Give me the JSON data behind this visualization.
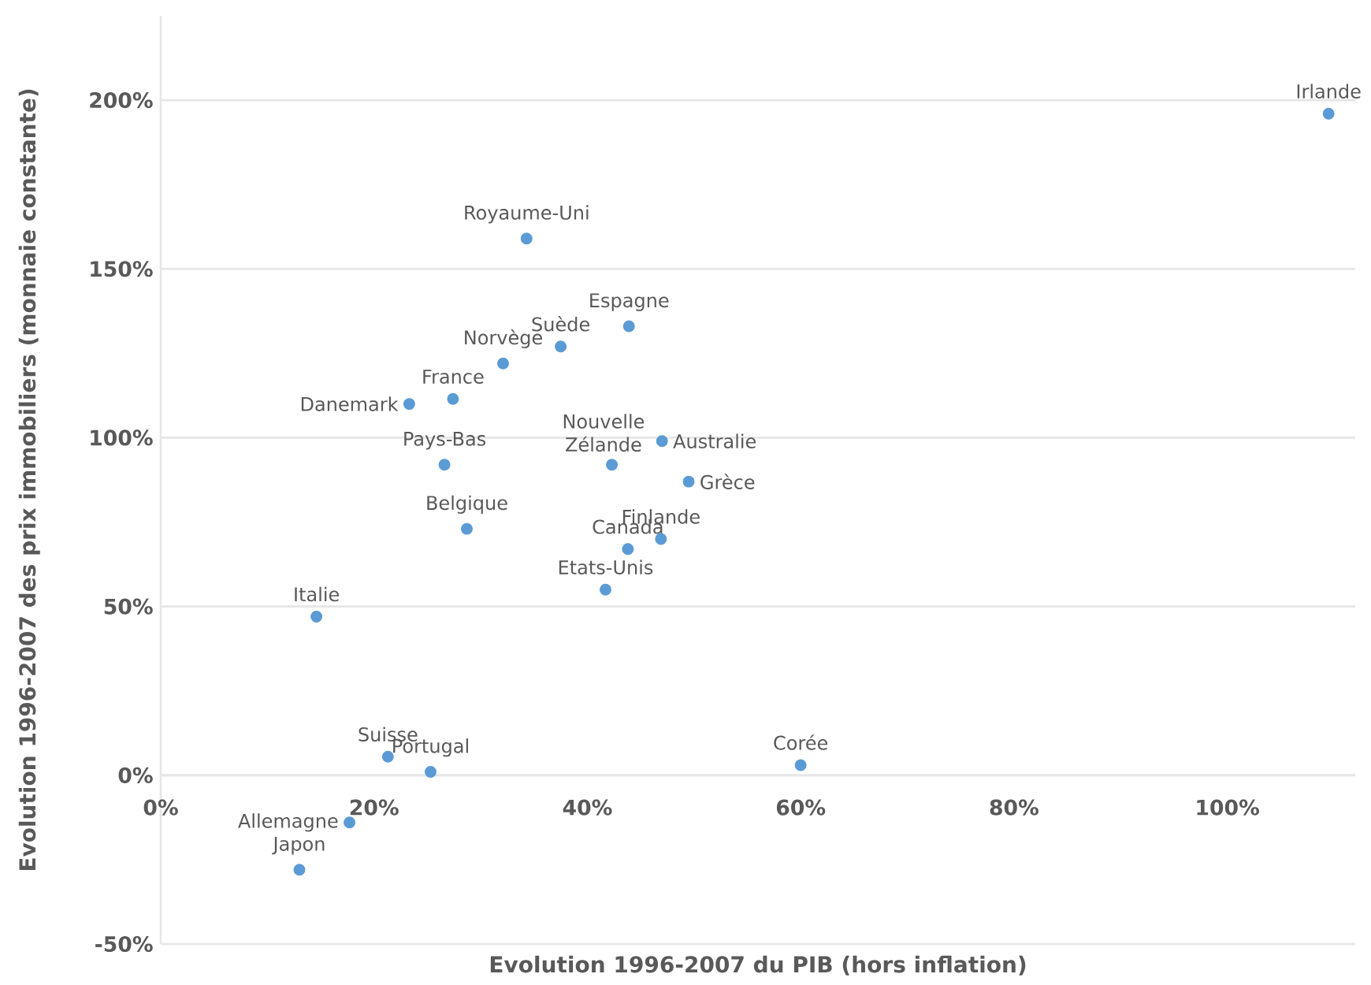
{
  "chart_data": {
    "type": "scatter",
    "xlabel": "Evolution 1996-2007 du PIB (hors inflation)",
    "ylabel": "Evolution 1996-2007 des prix immobiliers (monnaie constante)",
    "series": [
      {
        "color": "#5b9bd5",
        "x": [
          34.3,
          43.9,
          37.5,
          32.1,
          27.4,
          23.3,
          26.6,
          42.3,
          47,
          49.5,
          28.7,
          46.9,
          43.8,
          41.7,
          14.6,
          21.3,
          25.3,
          17.7,
          13,
          60,
          109.5
        ],
        "values": [
          159,
          133,
          127,
          122,
          111.5,
          110,
          92,
          92,
          99,
          87,
          73,
          70,
          67,
          55,
          47,
          5.5,
          1,
          -14,
          -28,
          3,
          196
        ]
      }
    ],
    "annotations": [
      {
        "text": "Royaume-Uni",
        "x": 34.3,
        "y": 159
      },
      {
        "text": "Espagne",
        "x": 43.9,
        "y": 133
      },
      {
        "text": "Suède",
        "x": 37.5,
        "y": 127
      },
      {
        "text": "Norvège",
        "x": 32.1,
        "y": 122
      },
      {
        "text": "France",
        "x": 27.4,
        "y": 111.5
      },
      {
        "text": "Danemark",
        "x": 23.3,
        "y": 110
      },
      {
        "text": "Pays-Bas",
        "x": 26.6,
        "y": 92
      },
      {
        "text": "Nouvelle Zélande",
        "x": 42.3,
        "y": 92
      },
      {
        "text": "Australie",
        "x": 47,
        "y": 99
      },
      {
        "text": "Grèce",
        "x": 49.5,
        "y": 87
      },
      {
        "text": "Belgique",
        "x": 28.7,
        "y": 73
      },
      {
        "text": "Finlande",
        "x": 46.9,
        "y": 70
      },
      {
        "text": "Canada",
        "x": 43.8,
        "y": 67
      },
      {
        "text": "Etats-Unis",
        "x": 41.7,
        "y": 55
      },
      {
        "text": "Italie",
        "x": 14.6,
        "y": 47
      },
      {
        "text": "Suisse",
        "x": 21.3,
        "y": 5.5
      },
      {
        "text": "Portugal",
        "x": 25.3,
        "y": 1
      },
      {
        "text": "Allemagne",
        "x": 17.7,
        "y": -14
      },
      {
        "text": "Japon",
        "x": 13,
        "y": -28
      },
      {
        "text": "Corée",
        "x": 60,
        "y": 3
      },
      {
        "text": "Irlande",
        "x": 109.5,
        "y": 196
      }
    ],
    "xlim": [
      0,
      112
    ],
    "ylim": [
      -50,
      225
    ],
    "xticks": [
      {
        "value": 0,
        "label": "0%"
      },
      {
        "value": 20,
        "label": "20%"
      },
      {
        "value": 40,
        "label": "40%"
      },
      {
        "value": 60,
        "label": "60%"
      },
      {
        "value": 80,
        "label": "80%"
      },
      {
        "value": 100,
        "label": "100%"
      }
    ],
    "yticks": [
      {
        "value": -50,
        "label": "-50%"
      },
      {
        "value": 0,
        "label": "0%"
      },
      {
        "value": 50,
        "label": "50%"
      },
      {
        "value": 100,
        "label": "100%"
      },
      {
        "value": 150,
        "label": "150%"
      },
      {
        "value": 200,
        "label": "200%"
      }
    ],
    "grid": "y",
    "marker": "circle"
  }
}
